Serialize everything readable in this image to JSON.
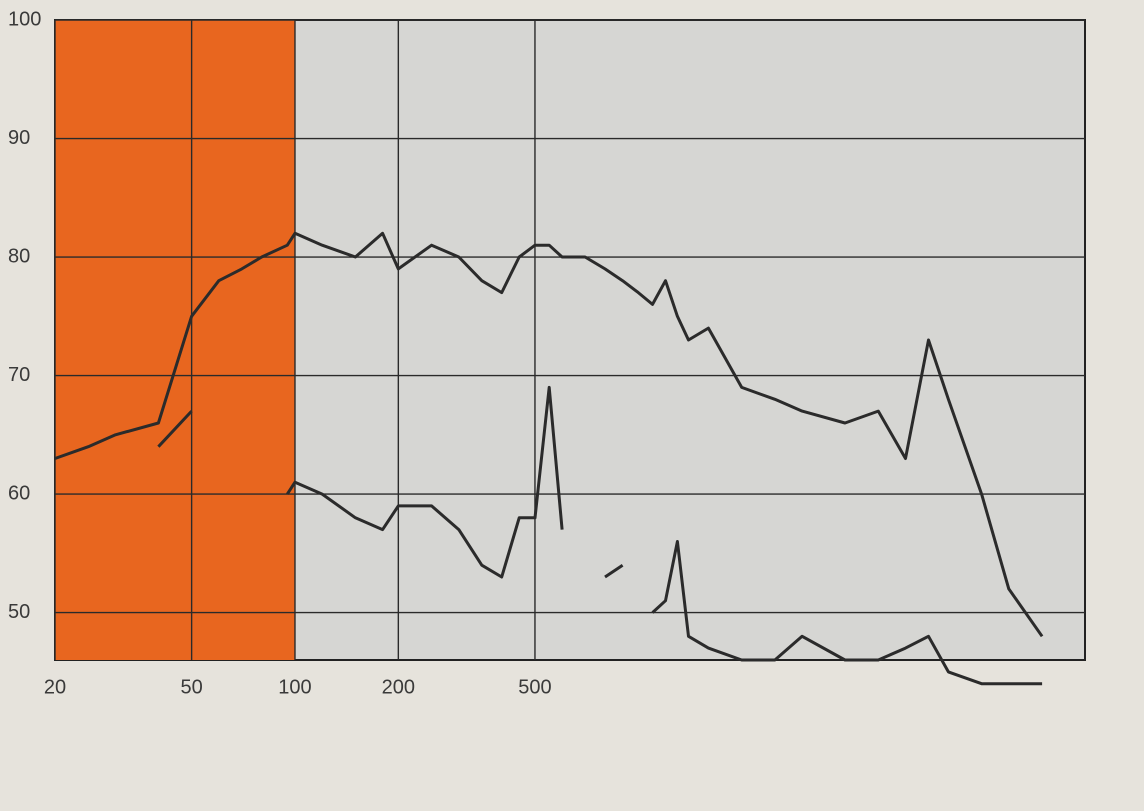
{
  "chart_data": {
    "type": "line",
    "x": [
      20,
      25,
      30,
      40,
      50,
      60,
      70,
      80,
      95,
      100,
      120,
      150,
      180,
      200,
      250,
      300,
      350,
      400,
      450,
      500,
      550,
      600,
      700,
      800,
      900,
      1000,
      1100,
      1200,
      1300,
      1400,
      1600,
      2000,
      2500,
      3000,
      4000,
      5000,
      6000,
      7000,
      8000,
      10000,
      12000,
      15000
    ],
    "series": [
      {
        "color": "#2b2b2b",
        "values": [
          63,
          64,
          65,
          66,
          75,
          78,
          79,
          80,
          81,
          82,
          81,
          80,
          82,
          79,
          81,
          80,
          78,
          77,
          80,
          81,
          81,
          80,
          80,
          79,
          78,
          77,
          76,
          78,
          75,
          73,
          74,
          69,
          68,
          67,
          66,
          67,
          63,
          73,
          68,
          60,
          52,
          48
        ]
      },
      {
        "color": "#2b2b2b",
        "values": [
          null,
          null,
          null,
          64,
          67,
          null,
          null,
          null,
          60,
          61,
          60,
          58,
          57,
          59,
          59,
          57,
          54,
          53,
          58,
          58,
          69,
          57,
          null,
          53,
          54,
          null,
          50,
          51,
          56,
          48,
          47,
          46,
          46,
          48,
          46,
          46,
          47,
          48,
          45,
          44,
          44,
          44
        ]
      }
    ],
    "log_x": true,
    "xlim": [
      20,
      20000
    ],
    "xticks": [
      20,
      50,
      100,
      200,
      500
    ],
    "ylim": [
      46,
      100
    ],
    "yticks": [
      50,
      60,
      70,
      80,
      90,
      100
    ],
    "grid": true,
    "shaded_xrange": [
      20,
      100
    ],
    "shade_color": "#e8661f"
  }
}
